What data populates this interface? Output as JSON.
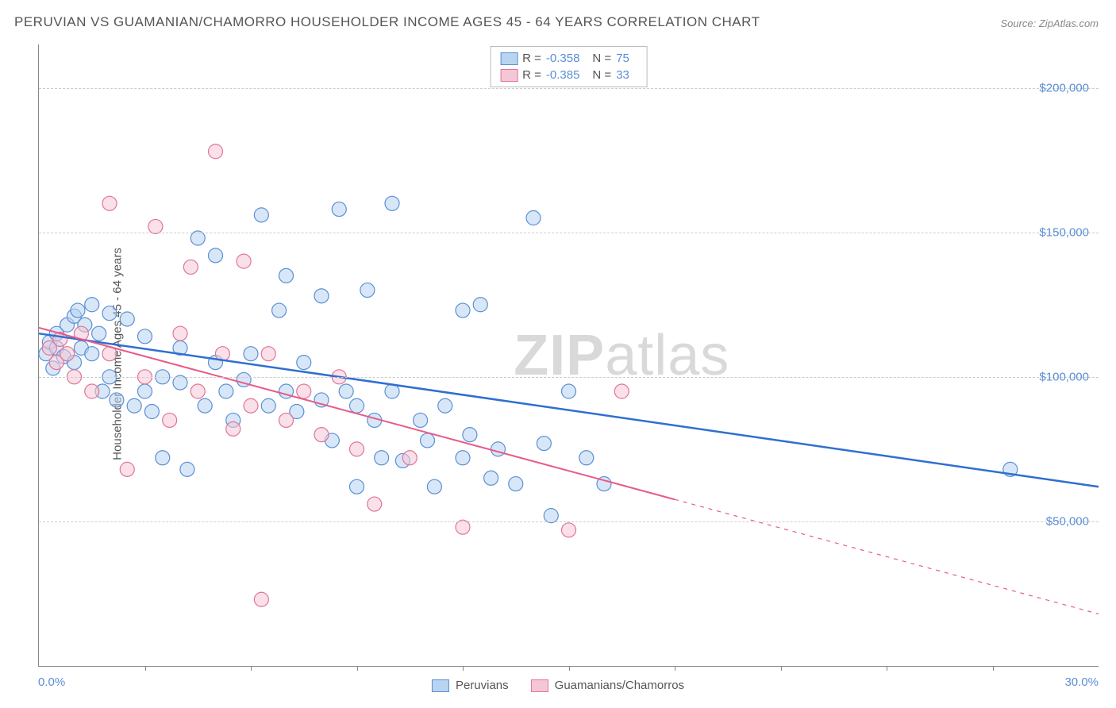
{
  "title": "PERUVIAN VS GUAMANIAN/CHAMORRO HOUSEHOLDER INCOME AGES 45 - 64 YEARS CORRELATION CHART",
  "source": "Source: ZipAtlas.com",
  "ylabel": "Householder Income Ages 45 - 64 years",
  "watermark_bold": "ZIP",
  "watermark_rest": "atlas",
  "chart": {
    "type": "scatter",
    "xlim": [
      0,
      30
    ],
    "ylim": [
      0,
      215000
    ],
    "xlim_labels": [
      "0.0%",
      "30.0%"
    ],
    "ytick_values": [
      50000,
      100000,
      150000,
      200000
    ],
    "ytick_labels": [
      "$50,000",
      "$100,000",
      "$150,000",
      "$200,000"
    ],
    "xtick_values": [
      3,
      6,
      9,
      12,
      15,
      18,
      21,
      24,
      27
    ],
    "background_color": "#ffffff",
    "grid_color": "#cccccc",
    "axis_color": "#888888",
    "text_color": "#555555",
    "tick_label_color": "#5b8fd6",
    "series": [
      {
        "name": "Peruvians",
        "marker_fill": "#b8d4f0",
        "marker_stroke": "#5b8fd6",
        "marker_fill_opacity": 0.55,
        "marker_radius": 9,
        "line_color": "#2f6fd0",
        "line_width": 2.5,
        "R": "-0.358",
        "N": "75",
        "trend": {
          "x1": 0,
          "y1": 115000,
          "x2": 30,
          "y2": 62000,
          "dash_after_x": 30
        },
        "points": [
          [
            0.2,
            108000
          ],
          [
            0.3,
            112000
          ],
          [
            0.4,
            103000
          ],
          [
            0.5,
            110000
          ],
          [
            0.5,
            115000
          ],
          [
            0.7,
            107000
          ],
          [
            0.8,
            118000
          ],
          [
            1.0,
            121000
          ],
          [
            1.0,
            105000
          ],
          [
            1.1,
            123000
          ],
          [
            1.2,
            110000
          ],
          [
            1.3,
            118000
          ],
          [
            1.5,
            125000
          ],
          [
            1.5,
            108000
          ],
          [
            1.7,
            115000
          ],
          [
            1.8,
            95000
          ],
          [
            2.0,
            122000
          ],
          [
            2.0,
            100000
          ],
          [
            2.2,
            92000
          ],
          [
            2.5,
            120000
          ],
          [
            2.7,
            90000
          ],
          [
            3.0,
            114000
          ],
          [
            3.0,
            95000
          ],
          [
            3.2,
            88000
          ],
          [
            3.5,
            100000
          ],
          [
            3.5,
            72000
          ],
          [
            4.0,
            98000
          ],
          [
            4.0,
            110000
          ],
          [
            4.2,
            68000
          ],
          [
            4.5,
            148000
          ],
          [
            4.7,
            90000
          ],
          [
            5.0,
            105000
          ],
          [
            5.0,
            142000
          ],
          [
            5.3,
            95000
          ],
          [
            5.5,
            85000
          ],
          [
            5.8,
            99000
          ],
          [
            6.0,
            108000
          ],
          [
            6.3,
            156000
          ],
          [
            6.5,
            90000
          ],
          [
            6.8,
            123000
          ],
          [
            7.0,
            95000
          ],
          [
            7.0,
            135000
          ],
          [
            7.3,
            88000
          ],
          [
            7.5,
            105000
          ],
          [
            8.0,
            128000
          ],
          [
            8.0,
            92000
          ],
          [
            8.3,
            78000
          ],
          [
            8.5,
            158000
          ],
          [
            8.7,
            95000
          ],
          [
            9.0,
            90000
          ],
          [
            9.0,
            62000
          ],
          [
            9.3,
            130000
          ],
          [
            9.5,
            85000
          ],
          [
            9.7,
            72000
          ],
          [
            10.0,
            95000
          ],
          [
            10.0,
            160000
          ],
          [
            10.3,
            71000
          ],
          [
            10.8,
            85000
          ],
          [
            11.0,
            78000
          ],
          [
            11.2,
            62000
          ],
          [
            11.5,
            90000
          ],
          [
            12.0,
            72000
          ],
          [
            12.0,
            123000
          ],
          [
            12.2,
            80000
          ],
          [
            12.5,
            125000
          ],
          [
            12.8,
            65000
          ],
          [
            13.0,
            75000
          ],
          [
            13.5,
            63000
          ],
          [
            14.0,
            155000
          ],
          [
            14.3,
            77000
          ],
          [
            14.5,
            52000
          ],
          [
            15.0,
            95000
          ],
          [
            15.5,
            72000
          ],
          [
            16.0,
            63000
          ],
          [
            27.5,
            68000
          ]
        ]
      },
      {
        "name": "Guamanians/Chamorros",
        "marker_fill": "#f5c6d6",
        "marker_stroke": "#e07598",
        "marker_fill_opacity": 0.55,
        "marker_radius": 9,
        "line_color": "#e85a88",
        "line_width": 2,
        "R": "-0.385",
        "N": "33",
        "trend": {
          "x1": 0,
          "y1": 117000,
          "x2": 30,
          "y2": 18000,
          "dash_after_x": 18
        },
        "points": [
          [
            0.3,
            110000
          ],
          [
            0.5,
            105000
          ],
          [
            0.6,
            113000
          ],
          [
            0.8,
            108000
          ],
          [
            1.0,
            100000
          ],
          [
            1.2,
            115000
          ],
          [
            1.5,
            95000
          ],
          [
            2.0,
            108000
          ],
          [
            2.0,
            160000
          ],
          [
            2.5,
            68000
          ],
          [
            3.0,
            100000
          ],
          [
            3.3,
            152000
          ],
          [
            3.7,
            85000
          ],
          [
            4.0,
            115000
          ],
          [
            4.3,
            138000
          ],
          [
            4.5,
            95000
          ],
          [
            5.0,
            178000
          ],
          [
            5.2,
            108000
          ],
          [
            5.5,
            82000
          ],
          [
            5.8,
            140000
          ],
          [
            6.0,
            90000
          ],
          [
            6.3,
            23000
          ],
          [
            6.5,
            108000
          ],
          [
            7.0,
            85000
          ],
          [
            7.5,
            95000
          ],
          [
            8.0,
            80000
          ],
          [
            8.5,
            100000
          ],
          [
            9.0,
            75000
          ],
          [
            9.5,
            56000
          ],
          [
            10.5,
            72000
          ],
          [
            12.0,
            48000
          ],
          [
            15.0,
            47000
          ],
          [
            16.5,
            95000
          ]
        ]
      }
    ]
  },
  "legend_bottom": [
    {
      "label": "Peruvians",
      "fill": "#b8d4f0",
      "stroke": "#5b8fd6"
    },
    {
      "label": "Guamanians/Chamorros",
      "fill": "#f5c6d6",
      "stroke": "#e07598"
    }
  ]
}
